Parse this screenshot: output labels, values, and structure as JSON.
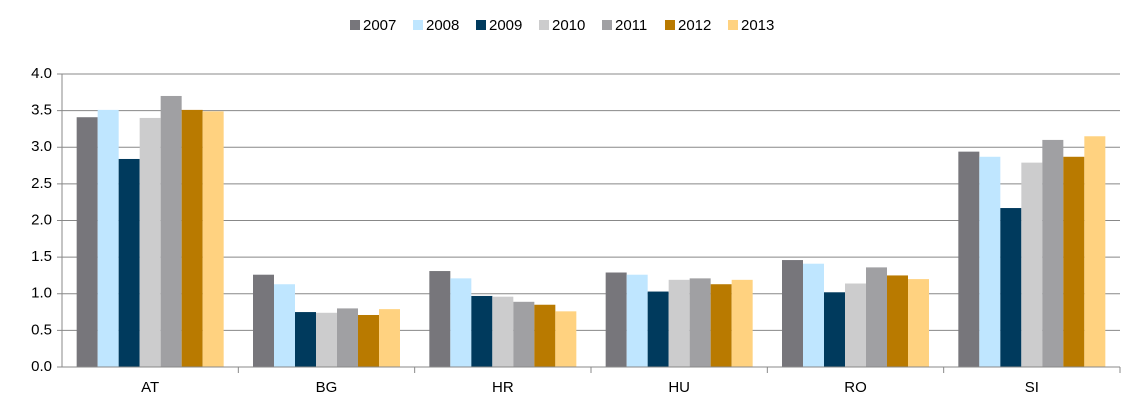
{
  "chart_data": {
    "type": "bar",
    "categories": [
      "AT",
      "BG",
      "HR",
      "HU",
      "RO",
      "SI"
    ],
    "series": [
      {
        "name": "2007",
        "color": "#77767b",
        "values": [
          3.41,
          1.26,
          1.31,
          1.29,
          1.46,
          2.94
        ]
      },
      {
        "name": "2008",
        "color": "#bfe6ff",
        "values": [
          3.51,
          1.13,
          1.21,
          1.26,
          1.41,
          2.87
        ]
      },
      {
        "name": "2009",
        "color": "#003a5d",
        "values": [
          2.84,
          0.75,
          0.97,
          1.03,
          1.02,
          2.17
        ]
      },
      {
        "name": "2010",
        "color": "#cccccd",
        "values": [
          3.4,
          0.74,
          0.96,
          1.19,
          1.14,
          2.79
        ]
      },
      {
        "name": "2011",
        "color": "#a0a0a3",
        "values": [
          3.7,
          0.8,
          0.89,
          1.21,
          1.36,
          3.1
        ]
      },
      {
        "name": "2012",
        "color": "#b97a00",
        "values": [
          3.51,
          0.71,
          0.85,
          1.13,
          1.25,
          2.87
        ]
      },
      {
        "name": "2013",
        "color": "#ffd280",
        "values": [
          3.49,
          0.79,
          0.76,
          1.19,
          1.2,
          3.15
        ]
      }
    ],
    "ylim": [
      0,
      4
    ],
    "yticks": [
      {
        "value": 0,
        "label": "0.0"
      },
      0.5,
      {
        "value": 1,
        "label": "1.0"
      },
      1.5,
      {
        "value": 2,
        "label": "2.0"
      },
      2.5,
      {
        "value": 3,
        "label": "3.0"
      },
      3.5,
      {
        "value": 4,
        "label": "4.0"
      }
    ],
    "grid": true,
    "legend": "top"
  }
}
